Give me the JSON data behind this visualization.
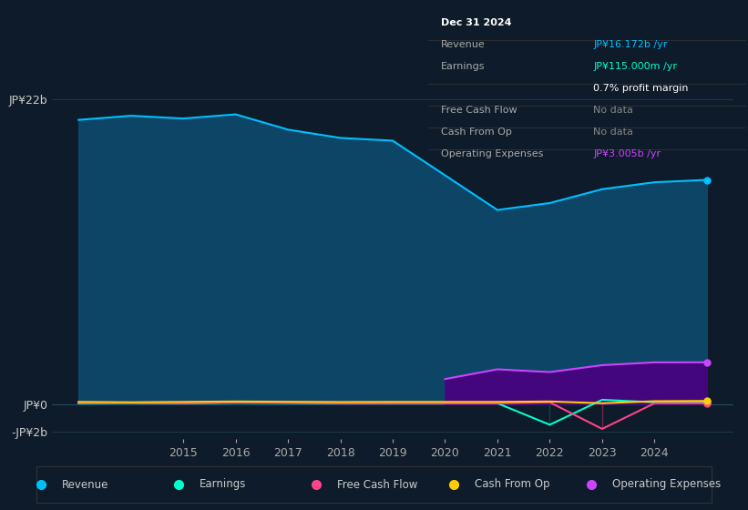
{
  "bg_color": "#0d1b2a",
  "plot_bg_color": "#0d1b2a",
  "grid_color": "#1e3a4a",
  "years": [
    2013,
    2014,
    2015,
    2016,
    2017,
    2018,
    2019,
    2020,
    2021,
    2022,
    2023,
    2024,
    2025
  ],
  "revenue": [
    20.5,
    20.8,
    20.6,
    20.9,
    19.8,
    19.2,
    19.0,
    16.5,
    14.0,
    14.5,
    15.5,
    16.0,
    16.172
  ],
  "earnings": [
    0.05,
    0.08,
    0.05,
    0.1,
    0.08,
    0.05,
    0.05,
    0.05,
    0.05,
    -1.5,
    0.3,
    0.12,
    0.115
  ],
  "free_cash_flow": [
    0.1,
    0.08,
    0.05,
    0.12,
    0.1,
    0.05,
    0.05,
    0.05,
    0.05,
    0.12,
    -1.8,
    0.05,
    0.05
  ],
  "cash_from_op": [
    0.15,
    0.12,
    0.15,
    0.18,
    0.16,
    0.14,
    0.15,
    0.15,
    0.15,
    0.18,
    0.05,
    0.2,
    0.22
  ],
  "operating_expenses_start_year": 2020,
  "operating_expenses": [
    0.0,
    0.0,
    0.0,
    0.0,
    0.0,
    0.0,
    0.0,
    1.8,
    2.5,
    2.3,
    2.8,
    3.0,
    3.005
  ],
  "ylim": [
    -2.5,
    24
  ],
  "y_ticks": [
    22,
    0,
    -2
  ],
  "y_labels": [
    "JP¥22b",
    "JP¥0",
    "-JP¥2b"
  ],
  "x_ticks": [
    2015,
    2016,
    2017,
    2018,
    2019,
    2020,
    2021,
    2022,
    2023,
    2024
  ],
  "revenue_color": "#00bfff",
  "revenue_fill_color": "#0d4a6e",
  "earnings_color": "#00ffcc",
  "free_cash_flow_color": "#ff4488",
  "cash_from_op_color": "#ffcc00",
  "op_expenses_color": "#cc44ff",
  "op_expenses_fill_color": "#4a0080",
  "info_box": {
    "date": "Dec 31 2024",
    "revenue_label": "Revenue",
    "revenue_value": "JP¥16.172b /yr",
    "earnings_label": "Earnings",
    "earnings_value": "JP¥115.000m /yr",
    "profit_margin": "0.7% profit margin",
    "fcf_label": "Free Cash Flow",
    "fcf_value": "No data",
    "cfo_label": "Cash From Op",
    "cfo_value": "No data",
    "opex_label": "Operating Expenses",
    "opex_value": "JP¥3.005b /yr",
    "value_color_revenue": "#00bfff",
    "value_color_earnings": "#00ffcc",
    "value_color_nodata": "#888888",
    "value_color_opex": "#cc44ff",
    "text_color": "#aaaaaa",
    "date_color": "#ffffff",
    "bg_color": "#0a0a0a",
    "border_color": "#444444"
  },
  "legend_items": [
    {
      "label": "Revenue",
      "color": "#00bfff"
    },
    {
      "label": "Earnings",
      "color": "#00ffcc"
    },
    {
      "label": "Free Cash Flow",
      "color": "#ff4488"
    },
    {
      "label": "Cash From Op",
      "color": "#ffcc00"
    },
    {
      "label": "Operating Expenses",
      "color": "#cc44ff"
    }
  ]
}
